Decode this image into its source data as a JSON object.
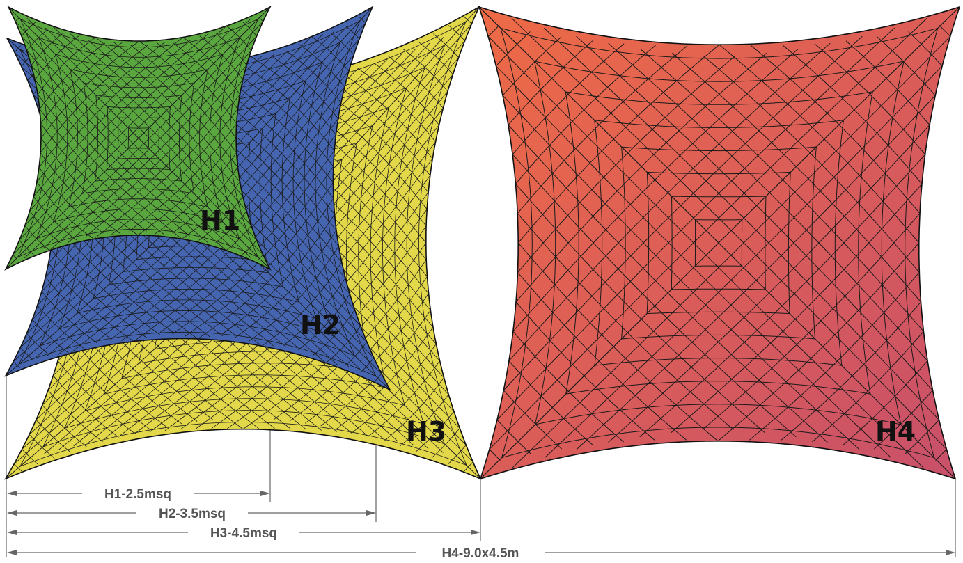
{
  "colors": {
    "H1": "#5aa63f",
    "H2": "#4565b0",
    "H3": "#e3d84a",
    "H4_light": "#ee6b46",
    "H4_dark": "#c8506a",
    "mesh": "#1a1a1a",
    "dimension": "#666666"
  },
  "panels": [
    {
      "id": "H1",
      "label": "H1",
      "color": "#5aa63f",
      "rings": 9
    },
    {
      "id": "H2",
      "label": "H2",
      "color": "#4565b0",
      "rings": 12
    },
    {
      "id": "H3",
      "label": "H3",
      "color": "#e3d84a",
      "rings": 14
    },
    {
      "id": "H4",
      "label": "H4",
      "color": "#ee6b46",
      "rings": 8
    }
  ],
  "dimensions": [
    {
      "id": "H1",
      "label": "H1-2.5msq"
    },
    {
      "id": "H2",
      "label": "H2-3.5msq"
    },
    {
      "id": "H3",
      "label": "H3-4.5msq"
    },
    {
      "id": "H4",
      "label": "H4-9.0x4.5m"
    }
  ]
}
